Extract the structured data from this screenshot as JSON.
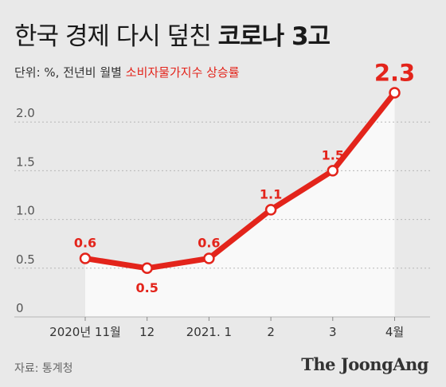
{
  "header": {
    "title_light": "한국 경제 다시 덮친",
    "title_bold": "코로나 3고",
    "unit_label": "단위: %, 전년비 월별",
    "series_label": "소비자물가지수 상승률"
  },
  "footer": {
    "source": "자료: 통계청",
    "logo": "The JoongAng"
  },
  "colors": {
    "accent": "#e3241b",
    "background": "#e9e9e9",
    "area": "#f9f9f9",
    "grid": "#b8b8b8"
  },
  "chart_data": {
    "type": "line",
    "categories": [
      "2020년 11월",
      "12",
      "2021. 1",
      "2",
      "3",
      "4월"
    ],
    "values": [
      0.6,
      0.5,
      0.6,
      1.1,
      1.5,
      2.3
    ],
    "value_labels": [
      "0.6",
      "0.5",
      "0.6",
      "1.1",
      "1.5",
      "2.3"
    ],
    "yticks": [
      "0",
      "0.5",
      "1.0",
      "1.5",
      "2.0"
    ],
    "ytick_values": [
      0,
      0.5,
      1.0,
      1.5,
      2.0
    ],
    "ylim": [
      0,
      2.3
    ],
    "grid": true,
    "series": [
      {
        "values": [
          0.6,
          0.5,
          0.6,
          1.1,
          1.5,
          2.3
        ]
      }
    ]
  }
}
